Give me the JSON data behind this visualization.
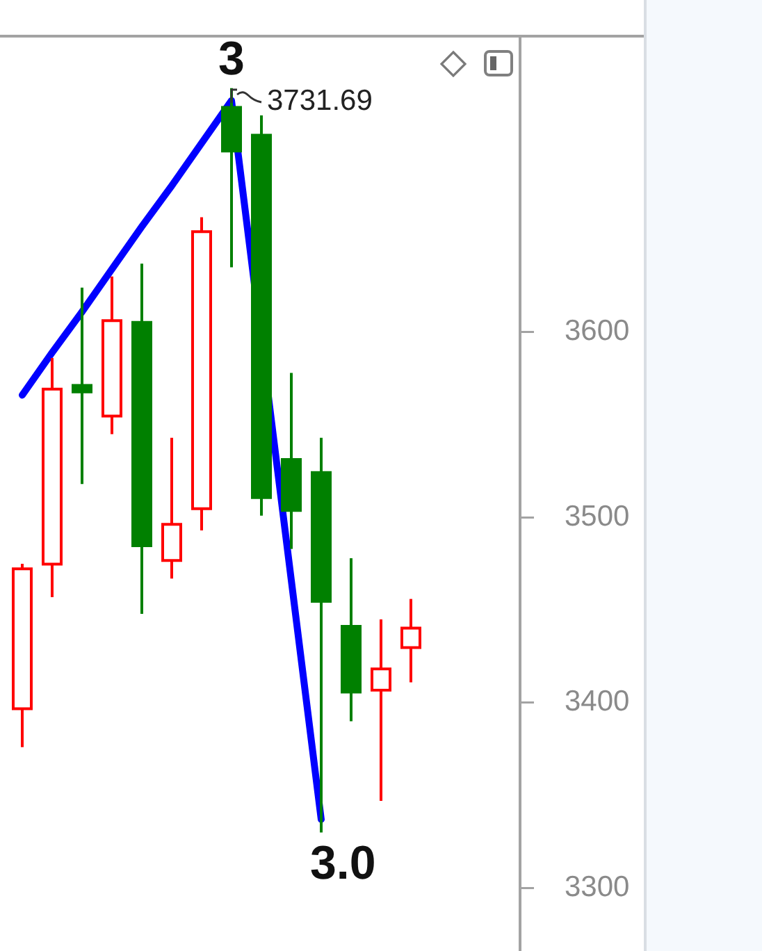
{
  "chart_data": {
    "type": "candlestick",
    "categories": [
      null,
      null,
      null,
      null,
      null,
      null,
      null,
      null,
      null,
      null,
      null,
      null,
      null,
      null
    ],
    "ohlc": [
      [
        3396,
        3475,
        3376,
        3473
      ],
      [
        3474,
        3586,
        3457,
        3570
      ],
      [
        3572,
        3624,
        3518,
        3567
      ],
      [
        3554,
        3630,
        3545,
        3607
      ],
      [
        3606,
        3637,
        3448,
        3484
      ],
      [
        3476,
        3543,
        3467,
        3497
      ],
      [
        3504,
        3662,
        3493,
        3655
      ],
      [
        3722,
        3731.69,
        3635,
        3697
      ],
      [
        3707,
        3717,
        3501,
        3510
      ],
      [
        3532,
        3578,
        3483,
        3503
      ],
      [
        3525,
        3543,
        3330,
        3454
      ],
      [
        3442,
        3478,
        3390,
        3405
      ],
      [
        3406,
        3445,
        3347,
        3419
      ],
      [
        3429,
        3456,
        3411,
        3441
      ]
    ],
    "colors": [
      "#ff0000",
      "#ff0000",
      "#008000",
      "#ff0000",
      "#008000",
      "#ff0000",
      "#ff0000",
      "#008000",
      "#008000",
      "#008000",
      "#008000",
      "#008000",
      "#ff0000",
      "#ff0000"
    ],
    "value_labels": [
      null,
      null,
      null,
      null,
      null,
      null,
      null,
      "3731.69",
      null,
      null,
      null,
      null,
      null,
      null
    ],
    "series": [
      {
        "type": "line",
        "color": "#0000ff",
        "values": [
          3566,
          3589,
          3611,
          3634,
          3657,
          3679,
          3702,
          3725,
          null,
          3466,
          3337,
          null,
          null,
          null
        ]
      }
    ],
    "annotations": [
      "3",
      "3.0"
    ],
    "ylim": [
      3266,
      3759
    ],
    "yticks": [
      3300,
      3400,
      3500,
      3600
    ],
    "tick_labels": "y"
  }
}
